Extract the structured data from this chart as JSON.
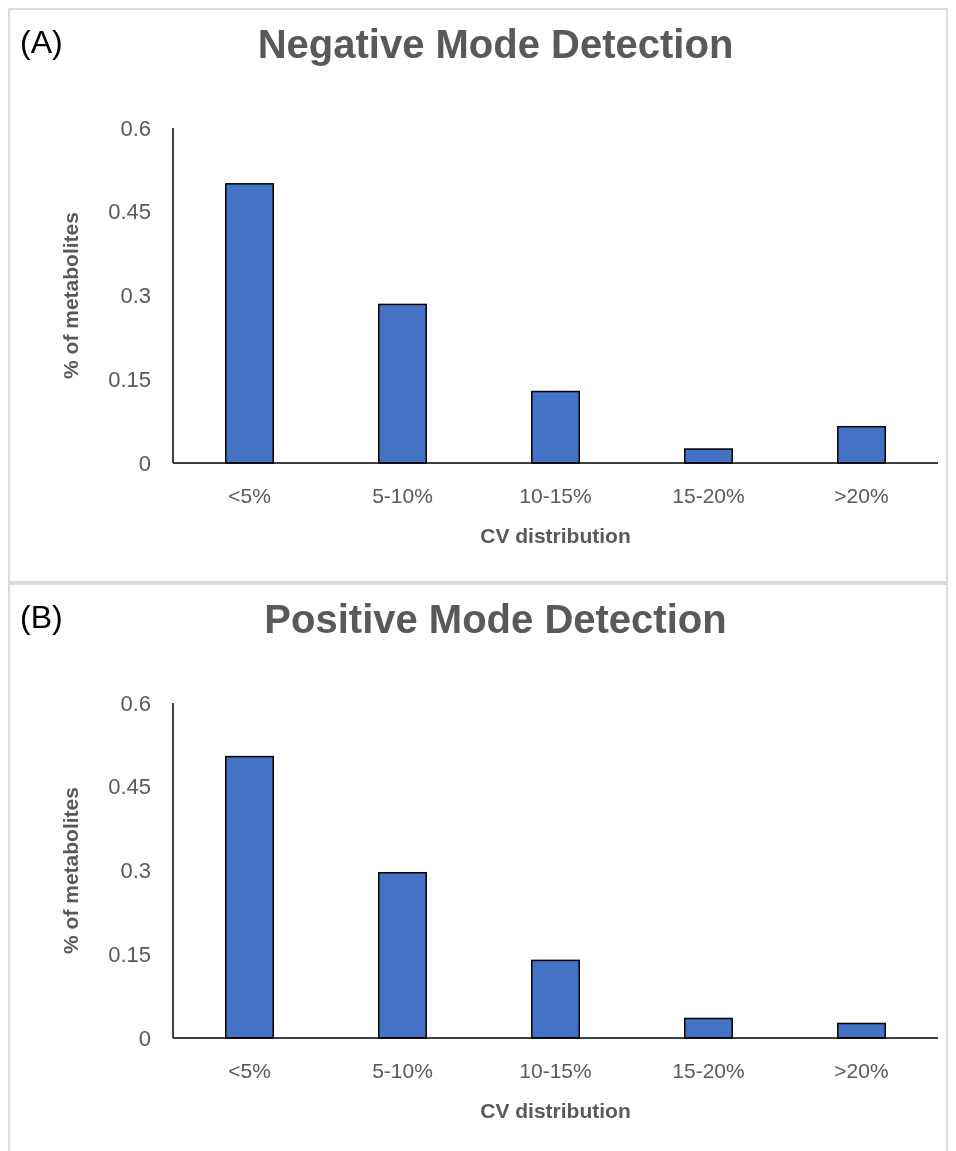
{
  "chart_data": [
    {
      "type": "bar",
      "title": "Negative Mode Detection",
      "annotations": [
        "(A)"
      ],
      "xlabel": "CV distribution",
      "ylabel": "% of metabolites",
      "categories": [
        "<5%",
        "5-10%",
        "10-15%",
        "15-20%",
        ">20%"
      ],
      "values": [
        0.5,
        0.284,
        0.128,
        0.025,
        0.065
      ],
      "color": "#4472c4",
      "ylim": [
        0,
        0.6
      ],
      "yticks": [
        0,
        0.15,
        0.3,
        0.45,
        0.6
      ]
    },
    {
      "type": "bar",
      "title": "Positive Mode Detection",
      "annotations": [
        "(B)"
      ],
      "xlabel": "CV distribution",
      "ylabel": "% of metabolites",
      "categories": [
        "<5%",
        "5-10%",
        "10-15%",
        "15-20%",
        ">20%"
      ],
      "values": [
        0.504,
        0.296,
        0.139,
        0.035,
        0.026
      ],
      "color": "#4472c4",
      "ylim": [
        0,
        0.6
      ],
      "yticks": [
        0,
        0.15,
        0.3,
        0.45,
        0.6
      ]
    }
  ]
}
